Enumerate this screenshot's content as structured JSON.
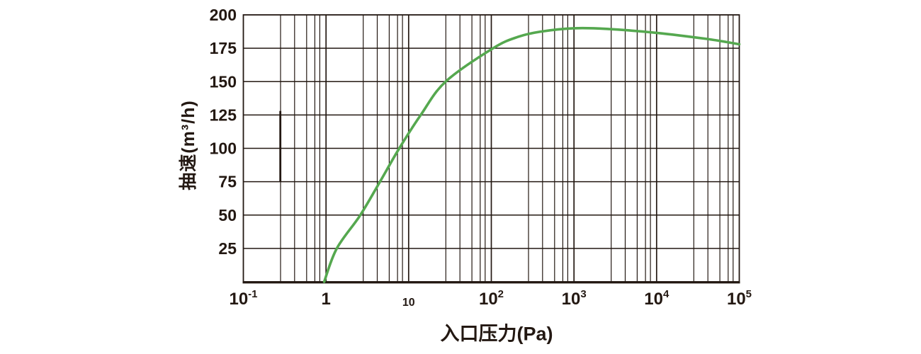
{
  "chart_data": {
    "type": "line",
    "title": "",
    "xlabel": "入口压力(Pa)",
    "ylabel": "抽速(m³/h)",
    "x_scale": "log10",
    "x_exponent_range": [
      -1,
      5
    ],
    "ylim": [
      0,
      200
    ],
    "y_ticks": [
      25,
      50,
      75,
      100,
      125,
      150,
      175,
      200
    ],
    "x_tick_labels": [
      {
        "base": "10",
        "exp": "-1",
        "size": "large"
      },
      {
        "base": "1",
        "exp": "",
        "size": "large"
      },
      {
        "base": "10",
        "exp": "",
        "size": "small"
      },
      {
        "base": "10",
        "exp": "2",
        "size": "large"
      },
      {
        "base": "10",
        "exp": "3",
        "size": "large"
      },
      {
        "base": "10",
        "exp": "4",
        "size": "large"
      },
      {
        "base": "10",
        "exp": "5",
        "size": "large"
      }
    ],
    "grid": {
      "horizontal_step": 25,
      "minor_vertical_fractions_per_decade": [
        0.45,
        0.62,
        0.765,
        0.865,
        0.925
      ],
      "stray_mark": {
        "x_value": 0.28,
        "y_from": 75,
        "y_to": 128
      }
    },
    "legend": null,
    "series": [
      {
        "name": "pumping-speed-curve",
        "color": "#55a84f",
        "points": [
          [
            0.95,
            0
          ],
          [
            1.35,
            25
          ],
          [
            2.6,
            50
          ],
          [
            4.5,
            75
          ],
          [
            7.7,
            100
          ],
          [
            14,
            125
          ],
          [
            28,
            150
          ],
          [
            105,
            175
          ],
          [
            210,
            183.5
          ],
          [
            400,
            187.5
          ],
          [
            1000,
            190
          ],
          [
            2500,
            189.5
          ],
          [
            10000,
            186.5
          ],
          [
            40000,
            182
          ],
          [
            100000,
            178
          ]
        ]
      }
    ]
  },
  "colors": {
    "background": "#ffffff",
    "grid_line": "#231812",
    "text": "#231812",
    "curve": "#55a84f"
  }
}
